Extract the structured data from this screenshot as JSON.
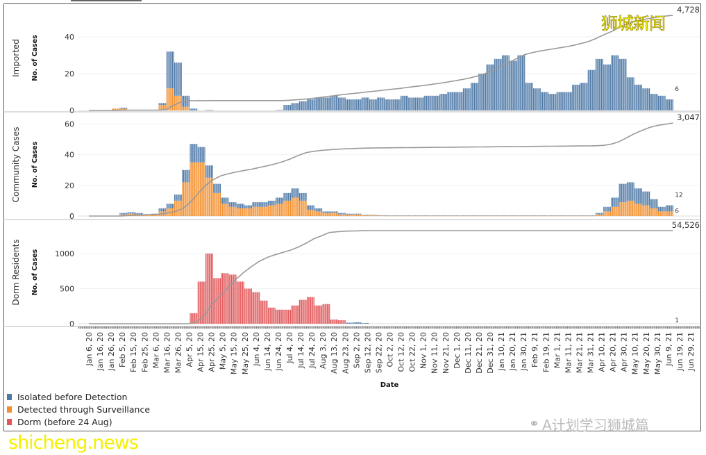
{
  "chart_data": {
    "type": "bar",
    "stacked": true,
    "xlabel": "Date",
    "x_tick_labels": [
      "Jan 6, 20",
      "Jan 16, 20",
      "Jan 26, 20",
      "Feb 5, 20",
      "Feb 15, 20",
      "Feb 25, 20",
      "Mar 6, 20",
      "Mar 16, 20",
      "Mar 26, 20",
      "Apr 5, 20",
      "Apr 15, 20",
      "Apr 25, 20",
      "May 5, 20",
      "May 15, 20",
      "May 25, 20",
      "Jun 4, 20",
      "Jun 14, 20",
      "Jun 24, 20",
      "Jul 4, 20",
      "Jul 14, 20",
      "Jul 24, 20",
      "Aug 3, 20",
      "Aug 13, 20",
      "Aug 23, 20",
      "Sep 2, 20",
      "Sep 12, 20",
      "Sep 22, 20",
      "Oct 2, 20",
      "Oct 12, 20",
      "Oct 22, 20",
      "Nov 1, 20",
      "Nov 11, 20",
      "Nov 21, 20",
      "Dec 1, 20",
      "Dec 11, 20",
      "Dec 21, 20",
      "Dec 31, 20",
      "Jan 10, 21",
      "Jan 20, 21",
      "Jan 30, 21",
      "Feb 9, 21",
      "Feb 19, 21",
      "Mar 1, 21",
      "Mar 11, 21",
      "Mar 21, 21",
      "Mar 31, 21",
      "Apr 10, 21",
      "Apr 20, 21",
      "Apr 30, 21",
      "May 10, 21",
      "May 20, 21",
      "May 30, 21",
      "Jun 9, 21",
      "Jun 19, 21",
      "Jun 29, 21"
    ],
    "x_range": [
      "2020-01-06",
      "2021-06-29"
    ],
    "legend": {
      "placement": "bottom-left",
      "entries": [
        {
          "name": "Isolated before Detection",
          "color": "#4e79a7"
        },
        {
          "name": "Detected through Surveillance",
          "color": "#f28e2b"
        },
        {
          "name": "Dorm (before 24 Aug)",
          "color": "#e15759"
        }
      ]
    },
    "panels": [
      {
        "title": "Imported",
        "ylabel": "No. of Cases",
        "ylim": [
          0,
          57
        ],
        "yticks": [
          0,
          20,
          40
        ],
        "cumulative_total_label": "4,728",
        "last_bar_labels": [
          "6"
        ],
        "series": [
          {
            "name": "Detected through Surveillance",
            "start": "2020-01-27",
            "values": [
              1,
              1,
              0,
              0,
              0,
              0,
              3,
              12,
              8,
              2
            ]
          },
          {
            "name": "Isolated before Detection",
            "start": "2020-02-03",
            "values": [
              0.5,
              0,
              0,
              0,
              0,
              1,
              20,
              18,
              6,
              1,
              0,
              0.3,
              0,
              0,
              0,
              0,
              0,
              0,
              0,
              0,
              0.3,
              3,
              4,
              5,
              6,
              7,
              7,
              8,
              7,
              6,
              6,
              7,
              6,
              7,
              6,
              6,
              8,
              7,
              7,
              8,
              8,
              9,
              10,
              10,
              12,
              15,
              20,
              25,
              28,
              30,
              27,
              30,
              15,
              12,
              10,
              9,
              10,
              10,
              14,
              15,
              22,
              28,
              25,
              30,
              28,
              18,
              14,
              12,
              9,
              8,
              6
            ]
          }
        ]
      },
      {
        "title": "Community Cases",
        "ylabel": "No. of Cases",
        "ylim": [
          0,
          67
        ],
        "yticks": [
          0,
          20,
          40,
          60
        ],
        "cumulative_total_label": "3,047",
        "last_bar_labels": [
          "12",
          "6"
        ],
        "series": [
          {
            "name": "Detected through Surveillance",
            "start": "2020-02-03",
            "values": [
              1,
              1.5,
              1,
              0.5,
              1,
              3,
              5,
              10,
              22,
              35,
              35,
              25,
              15,
              8,
              6,
              5,
              5,
              6,
              6,
              7,
              8,
              10,
              12,
              10,
              4,
              3,
              2,
              2,
              1,
              1,
              1,
              0.5,
              0.5,
              0.3,
              0.2,
              0.2,
              0.2,
              0.2,
              0.2,
              0.2,
              0.2,
              0.2,
              0.2,
              0.2,
              0.2,
              0.2,
              0.2,
              0.2,
              0.2,
              0.2,
              0.2,
              0.2,
              0.2,
              0.2,
              0.2,
              0.2,
              0.2,
              0.2,
              0.2,
              0.2,
              0.2,
              1,
              3,
              6,
              9,
              10,
              8,
              7,
              5,
              3,
              3
            ]
          },
          {
            "name": "Isolated before Detection",
            "start": "2020-02-03",
            "values": [
              1,
              1,
              1,
              0.5,
              0.5,
              2,
              3,
              4,
              8,
              12,
              10,
              8,
              6,
              4,
              3,
              3,
              2,
              3,
              3,
              3,
              4,
              5,
              6,
              5,
              3,
              2,
              1,
              1,
              1,
              0.5,
              0.5,
              0.3,
              0.3,
              0.2,
              0.2,
              0.2,
              0.2,
              0.2,
              0.2,
              0.2,
              0.2,
              0.2,
              0.2,
              0.2,
              0.2,
              0.2,
              0.2,
              0.2,
              0.2,
              0.2,
              0.2,
              0.2,
              0.2,
              0.2,
              0.2,
              0.2,
              0.2,
              0.2,
              0.2,
              0.2,
              0.2,
              1,
              3,
              6,
              12,
              12,
              10,
              9,
              6,
              3,
              4
            ]
          }
        ]
      },
      {
        "title": "Dorm Residents",
        "ylabel": "No. of Cases",
        "ylim": [
          0,
          1465
        ],
        "yticks": [
          0,
          500,
          1000
        ],
        "cumulative_total_label": "54,526",
        "last_bar_labels": [
          "1"
        ],
        "series": [
          {
            "name": "Dorm (before 24 Aug)",
            "start": "2020-04-06",
            "values": [
              150,
              600,
              1000,
              650,
              720,
              700,
              600,
              500,
              450,
              330,
              230,
              200,
              200,
              260,
              340,
              380,
              260,
              280,
              60,
              50
            ]
          },
          {
            "name": "Isolated before Detection",
            "start": "2020-08-24",
            "values": [
              15,
              20,
              10
            ]
          }
        ]
      }
    ],
    "last_data_date": "2021-06-13",
    "cumulative_line_color": "#999999"
  },
  "watermarks": {
    "top_right": "狮城新闻",
    "bottom_left": "shicheng.news",
    "bottom_right": "A计划学习狮城篇"
  }
}
